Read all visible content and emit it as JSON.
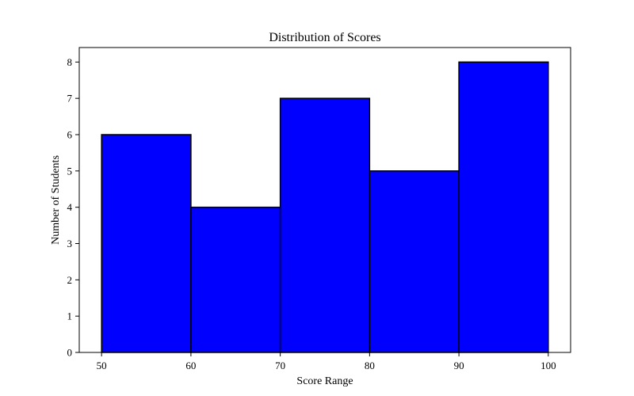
{
  "chart_data": {
    "type": "bar",
    "title": "Distribution of Scores",
    "xlabel": "Score Range",
    "ylabel": "Number of Students",
    "bins": [
      {
        "start": 50,
        "end": 60,
        "value": 6
      },
      {
        "start": 60,
        "end": 70,
        "value": 4
      },
      {
        "start": 70,
        "end": 80,
        "value": 7
      },
      {
        "start": 80,
        "end": 90,
        "value": 5
      },
      {
        "start": 90,
        "end": 100,
        "value": 8
      }
    ],
    "values": [
      6,
      4,
      7,
      5,
      8
    ],
    "xlim": [
      47.5,
      102.5
    ],
    "ylim": [
      0,
      8.4
    ],
    "xticks": [
      50,
      60,
      70,
      80,
      90,
      100
    ],
    "yticks": [
      0,
      1,
      2,
      3,
      4,
      5,
      6,
      7,
      8
    ],
    "bar_color": "#0000ff",
    "edge_color": "#000000",
    "grid": false,
    "legend": "none"
  }
}
